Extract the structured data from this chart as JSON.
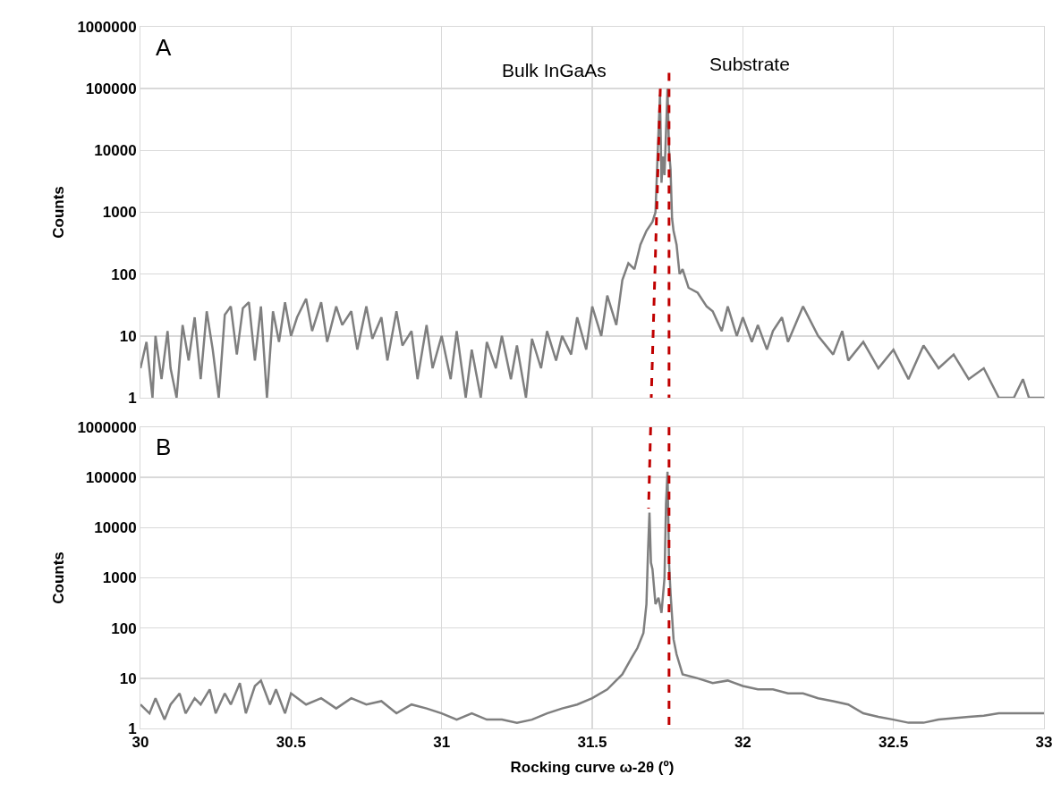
{
  "chart_data": [
    {
      "type": "line",
      "ylabel": "Counts",
      "log": "y",
      "grid": true,
      "marker": "none",
      "tick_labels": "y",
      "xlim": [
        30,
        33
      ],
      "xticks": [
        30,
        30.5,
        31,
        31.5,
        32,
        32.5,
        33
      ],
      "ylim": [
        1,
        1000000
      ],
      "yticks": [
        1,
        10,
        100,
        1000,
        10000,
        100000,
        1000000
      ],
      "annotations": [
        "A",
        "Bulk InGaAs",
        "Substrate"
      ],
      "series": [
        {
          "color": "#7f7f7f",
          "line_style": "solid",
          "x": [
            30,
            30.02,
            30.04,
            30.05,
            30.07,
            30.09,
            30.1,
            30.12,
            30.14,
            30.16,
            30.18,
            30.2,
            30.22,
            30.24,
            30.26,
            30.28,
            30.3,
            30.32,
            30.34,
            30.36,
            30.38,
            30.4,
            30.42,
            30.44,
            30.46,
            30.48,
            30.5,
            30.52,
            30.55,
            30.57,
            30.6,
            30.62,
            30.65,
            30.67,
            30.7,
            30.72,
            30.75,
            30.77,
            30.8,
            30.82,
            30.85,
            30.87,
            30.9,
            30.92,
            30.95,
            30.97,
            31,
            31.03,
            31.05,
            31.08,
            31.1,
            31.13,
            31.15,
            31.18,
            31.2,
            31.23,
            31.25,
            31.28,
            31.3,
            31.33,
            31.35,
            31.38,
            31.4,
            31.43,
            31.45,
            31.48,
            31.5,
            31.53,
            31.55,
            31.58,
            31.6,
            31.62,
            31.64,
            31.66,
            31.68,
            31.7,
            31.71,
            31.72,
            31.725,
            31.73,
            31.735,
            31.74,
            31.745,
            31.75,
            31.755,
            31.76,
            31.765,
            31.77,
            31.78,
            31.79,
            31.8,
            31.82,
            31.85,
            31.88,
            31.9,
            31.93,
            31.95,
            31.98,
            32,
            32.03,
            32.05,
            32.08,
            32.1,
            32.13,
            32.15,
            32.2,
            32.25,
            32.3,
            32.33,
            32.35,
            32.4,
            32.45,
            32.5,
            32.55,
            32.6,
            32.65,
            32.7,
            32.75,
            32.8,
            32.85,
            32.9,
            32.93,
            32.95,
            32.97,
            33
          ],
          "values": [
            3,
            8,
            1,
            10,
            2,
            12,
            3,
            1,
            15,
            4,
            20,
            2,
            25,
            6,
            1,
            22,
            30,
            5,
            28,
            35,
            4,
            30,
            1,
            25,
            8,
            35,
            10,
            20,
            40,
            12,
            35,
            8,
            30,
            15,
            25,
            6,
            30,
            9,
            20,
            4,
            25,
            7,
            12,
            2,
            15,
            3,
            10,
            2,
            12,
            1,
            6,
            1,
            8,
            3,
            10,
            2,
            7,
            1,
            9,
            3,
            12,
            4,
            10,
            5,
            20,
            6,
            30,
            10,
            45,
            15,
            80,
            150,
            120,
            300,
            500,
            700,
            1000,
            20000,
            80000,
            3000,
            8000,
            4000,
            20000,
            100000,
            10000,
            5000,
            800,
            500,
            300,
            100,
            120,
            60,
            50,
            30,
            25,
            12,
            30,
            10,
            20,
            8,
            15,
            6,
            12,
            20,
            8,
            30,
            10,
            5,
            12,
            4,
            8,
            3,
            6,
            2,
            7,
            3,
            5,
            2,
            3,
            1,
            1,
            2,
            1,
            1,
            1
          ]
        },
        {
          "color": "#c00000",
          "line_style": "dashed",
          "x": [
            31.726,
            31.696
          ],
          "values": [
            100000,
            1
          ]
        },
        {
          "color": "#c00000",
          "line_style": "dashed",
          "x": [
            31.755,
            31.755
          ],
          "values": [
            180000,
            1
          ]
        }
      ]
    },
    {
      "type": "line",
      "ylabel": "Counts",
      "xlabel": "Rocking curve ω-2θ (º)",
      "log": "y",
      "grid": true,
      "marker": "none",
      "xlim": [
        30,
        33
      ],
      "xticks": [
        30,
        30.5,
        31,
        31.5,
        32,
        32.5,
        33
      ],
      "ylim": [
        1,
        1000000
      ],
      "yticks": [
        1,
        10,
        100,
        1000,
        10000,
        100000,
        1000000
      ],
      "annotations": [
        "B"
      ],
      "series": [
        {
          "color": "#7f7f7f",
          "line_style": "solid",
          "x": [
            30,
            30.03,
            30.05,
            30.08,
            30.1,
            30.13,
            30.15,
            30.18,
            30.2,
            30.23,
            30.25,
            30.28,
            30.3,
            30.33,
            30.35,
            30.38,
            30.4,
            30.43,
            30.45,
            30.48,
            30.5,
            30.55,
            30.6,
            30.65,
            30.7,
            30.75,
            30.8,
            30.85,
            30.9,
            30.95,
            31,
            31.05,
            31.1,
            31.15,
            31.2,
            31.25,
            31.3,
            31.35,
            31.4,
            31.45,
            31.5,
            31.55,
            31.6,
            31.63,
            31.65,
            31.67,
            31.68,
            31.685,
            31.69,
            31.695,
            31.7,
            31.71,
            31.72,
            31.73,
            31.74,
            31.745,
            31.75,
            31.755,
            31.76,
            31.77,
            31.78,
            31.8,
            31.85,
            31.9,
            31.95,
            32,
            32.05,
            32.1,
            32.15,
            32.2,
            32.25,
            32.3,
            32.35,
            32.4,
            32.45,
            32.5,
            32.55,
            32.6,
            32.65,
            32.7,
            32.75,
            32.8,
            32.85,
            32.9,
            32.95,
            33
          ],
          "values": [
            3,
            2,
            4,
            1.5,
            3,
            5,
            2,
            4,
            3,
            6,
            2,
            5,
            3,
            8,
            2,
            7,
            9,
            3,
            6,
            2,
            5,
            3,
            4,
            2.5,
            4,
            3,
            3.5,
            2,
            3,
            2.5,
            2,
            1.5,
            2,
            1.5,
            1.5,
            1.3,
            1.5,
            2,
            2.5,
            3,
            4,
            6,
            12,
            25,
            40,
            80,
            300,
            3000,
            20000,
            2000,
            1500,
            300,
            400,
            200,
            1000,
            30000,
            130000,
            2000,
            500,
            60,
            30,
            12,
            10,
            8,
            9,
            7,
            6,
            6,
            5,
            5,
            4,
            3.5,
            3,
            2,
            1.7,
            1.5,
            1.3,
            1.3,
            1.5,
            1.6,
            1.7,
            1.8,
            2,
            2,
            2,
            2
          ]
        },
        {
          "color": "#c00000",
          "line_style": "dashed",
          "x": [
            31.694,
            31.687
          ],
          "values": [
            1000000,
            24000
          ]
        },
        {
          "color": "#c00000",
          "line_style": "dashed",
          "x": [
            31.755,
            31.755
          ],
          "values": [
            1000000,
            1
          ]
        }
      ]
    }
  ]
}
